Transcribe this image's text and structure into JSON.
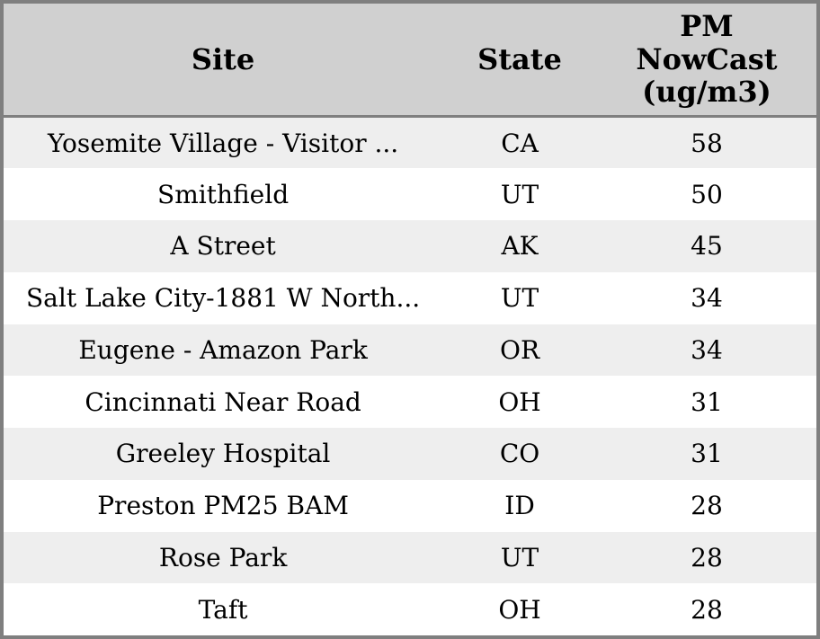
{
  "table": {
    "columns": [
      {
        "label": "Site"
      },
      {
        "label": "State"
      },
      {
        "label": "PM\nNowCast\n(ug/m3)"
      }
    ],
    "rows": [
      {
        "site": "Yosemite Village - Visitor ...",
        "state": "CA",
        "pm_nowcast": 58
      },
      {
        "site": "Smithfield",
        "state": "UT",
        "pm_nowcast": 50
      },
      {
        "site": "A Street",
        "state": "AK",
        "pm_nowcast": 45
      },
      {
        "site": "Salt Lake City-1881 W North...",
        "state": "UT",
        "pm_nowcast": 34
      },
      {
        "site": "Eugene - Amazon Park",
        "state": "OR",
        "pm_nowcast": 34
      },
      {
        "site": "Cincinnati Near Road",
        "state": "OH",
        "pm_nowcast": 31
      },
      {
        "site": "Greeley Hospital",
        "state": "CO",
        "pm_nowcast": 31
      },
      {
        "site": "Preston PM25 BAM",
        "state": "ID",
        "pm_nowcast": 28
      },
      {
        "site": "Rose Park",
        "state": "UT",
        "pm_nowcast": 28
      },
      {
        "site": "Taft",
        "state": "OH",
        "pm_nowcast": 28
      }
    ]
  },
  "colors": {
    "header_bg": "#d0d0d0",
    "row_stripe_bg": "#eeeeee",
    "row_bg": "#ffffff",
    "border": "#7f7f7f",
    "text": "#000000"
  },
  "chart_data": {
    "type": "table",
    "columns": [
      "Site",
      "State",
      "PM NowCast (ug/m3)"
    ],
    "rows": [
      [
        "Yosemite Village - Visitor ...",
        "CA",
        58
      ],
      [
        "Smithfield",
        "UT",
        50
      ],
      [
        "A Street",
        "AK",
        45
      ],
      [
        "Salt Lake City-1881 W North...",
        "UT",
        34
      ],
      [
        "Eugene - Amazon Park",
        "OR",
        34
      ],
      [
        "Cincinnati Near Road",
        "OH",
        31
      ],
      [
        "Greeley Hospital",
        "CO",
        31
      ],
      [
        "Preston PM25 BAM",
        "ID",
        28
      ],
      [
        "Rose Park",
        "UT",
        28
      ],
      [
        "Taft",
        "OH",
        28
      ]
    ],
    "layout": {
      "striped_rows": true,
      "all_cells_centered": true,
      "header_position": "top"
    }
  }
}
